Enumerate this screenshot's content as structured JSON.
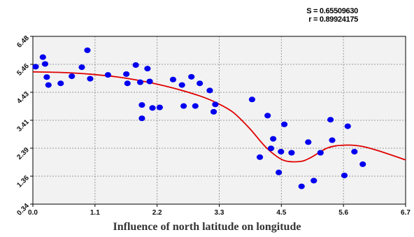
{
  "stats": {
    "s_label": "S = 0.65509630",
    "r_label": "r = 0.89924175"
  },
  "caption": "Influence of north latitude on longitude",
  "chart_data": {
    "type": "scatter",
    "title": "",
    "xlabel": "",
    "ylabel": "",
    "xlim": [
      0.0,
      6.7
    ],
    "ylim": [
      0.34,
      6.48
    ],
    "x_ticks": [
      "0.0",
      "1.1",
      "2.2",
      "3.3",
      "4.5",
      "5.6",
      "6.7"
    ],
    "y_ticks": [
      "0.34",
      "1.36",
      "2.39",
      "3.41",
      "4.43",
      "5.46",
      "6.48"
    ],
    "grid": true,
    "colors": {
      "points": "#0000ee",
      "fit_line": "#e00000",
      "grid": "#9a9a9a",
      "plot_bg": "#f2f2f2"
    },
    "series": [
      {
        "kind": "points",
        "x": [
          0.05,
          0.18,
          0.22,
          0.25,
          0.28,
          0.5,
          0.7,
          0.88,
          0.98,
          1.03,
          1.35,
          1.68,
          1.7,
          1.85,
          1.93,
          1.96,
          1.96,
          2.06,
          2.1,
          2.15,
          2.28,
          2.52,
          2.68,
          2.71,
          2.85,
          2.92,
          3.0,
          3.18,
          3.25,
          3.28,
          3.94,
          4.08,
          4.22,
          4.28,
          4.32,
          4.42,
          4.46,
          4.52,
          4.65,
          4.83,
          4.95,
          5.05,
          5.17,
          5.35,
          5.38,
          5.6,
          5.66,
          5.78,
          5.93
        ],
        "y": [
          5.37,
          5.72,
          5.47,
          4.99,
          4.7,
          4.76,
          5.02,
          5.35,
          5.97,
          4.93,
          5.07,
          5.1,
          4.76,
          5.43,
          4.8,
          3.97,
          3.48,
          5.3,
          4.83,
          3.86,
          3.88,
          4.9,
          4.7,
          3.93,
          5.0,
          3.93,
          4.76,
          4.5,
          3.72,
          3.99,
          4.17,
          2.06,
          3.58,
          2.38,
          2.73,
          1.5,
          2.26,
          3.26,
          2.22,
          0.99,
          2.61,
          1.2,
          2.22,
          3.43,
          2.68,
          1.39,
          3.19,
          2.26,
          1.8
        ]
      },
      {
        "kind": "fit_line",
        "x": [
          0.0,
          0.5,
          1.0,
          1.5,
          2.0,
          2.5,
          3.0,
          3.3,
          3.6,
          3.9,
          4.2,
          4.5,
          4.8,
          5.0,
          5.3,
          5.6,
          5.9,
          6.2,
          6.7
        ],
        "y": [
          5.18,
          5.16,
          5.1,
          5.0,
          4.83,
          4.6,
          4.3,
          4.05,
          3.7,
          3.1,
          2.4,
          1.95,
          1.9,
          2.05,
          2.4,
          2.5,
          2.46,
          2.3,
          1.96
        ]
      }
    ]
  }
}
